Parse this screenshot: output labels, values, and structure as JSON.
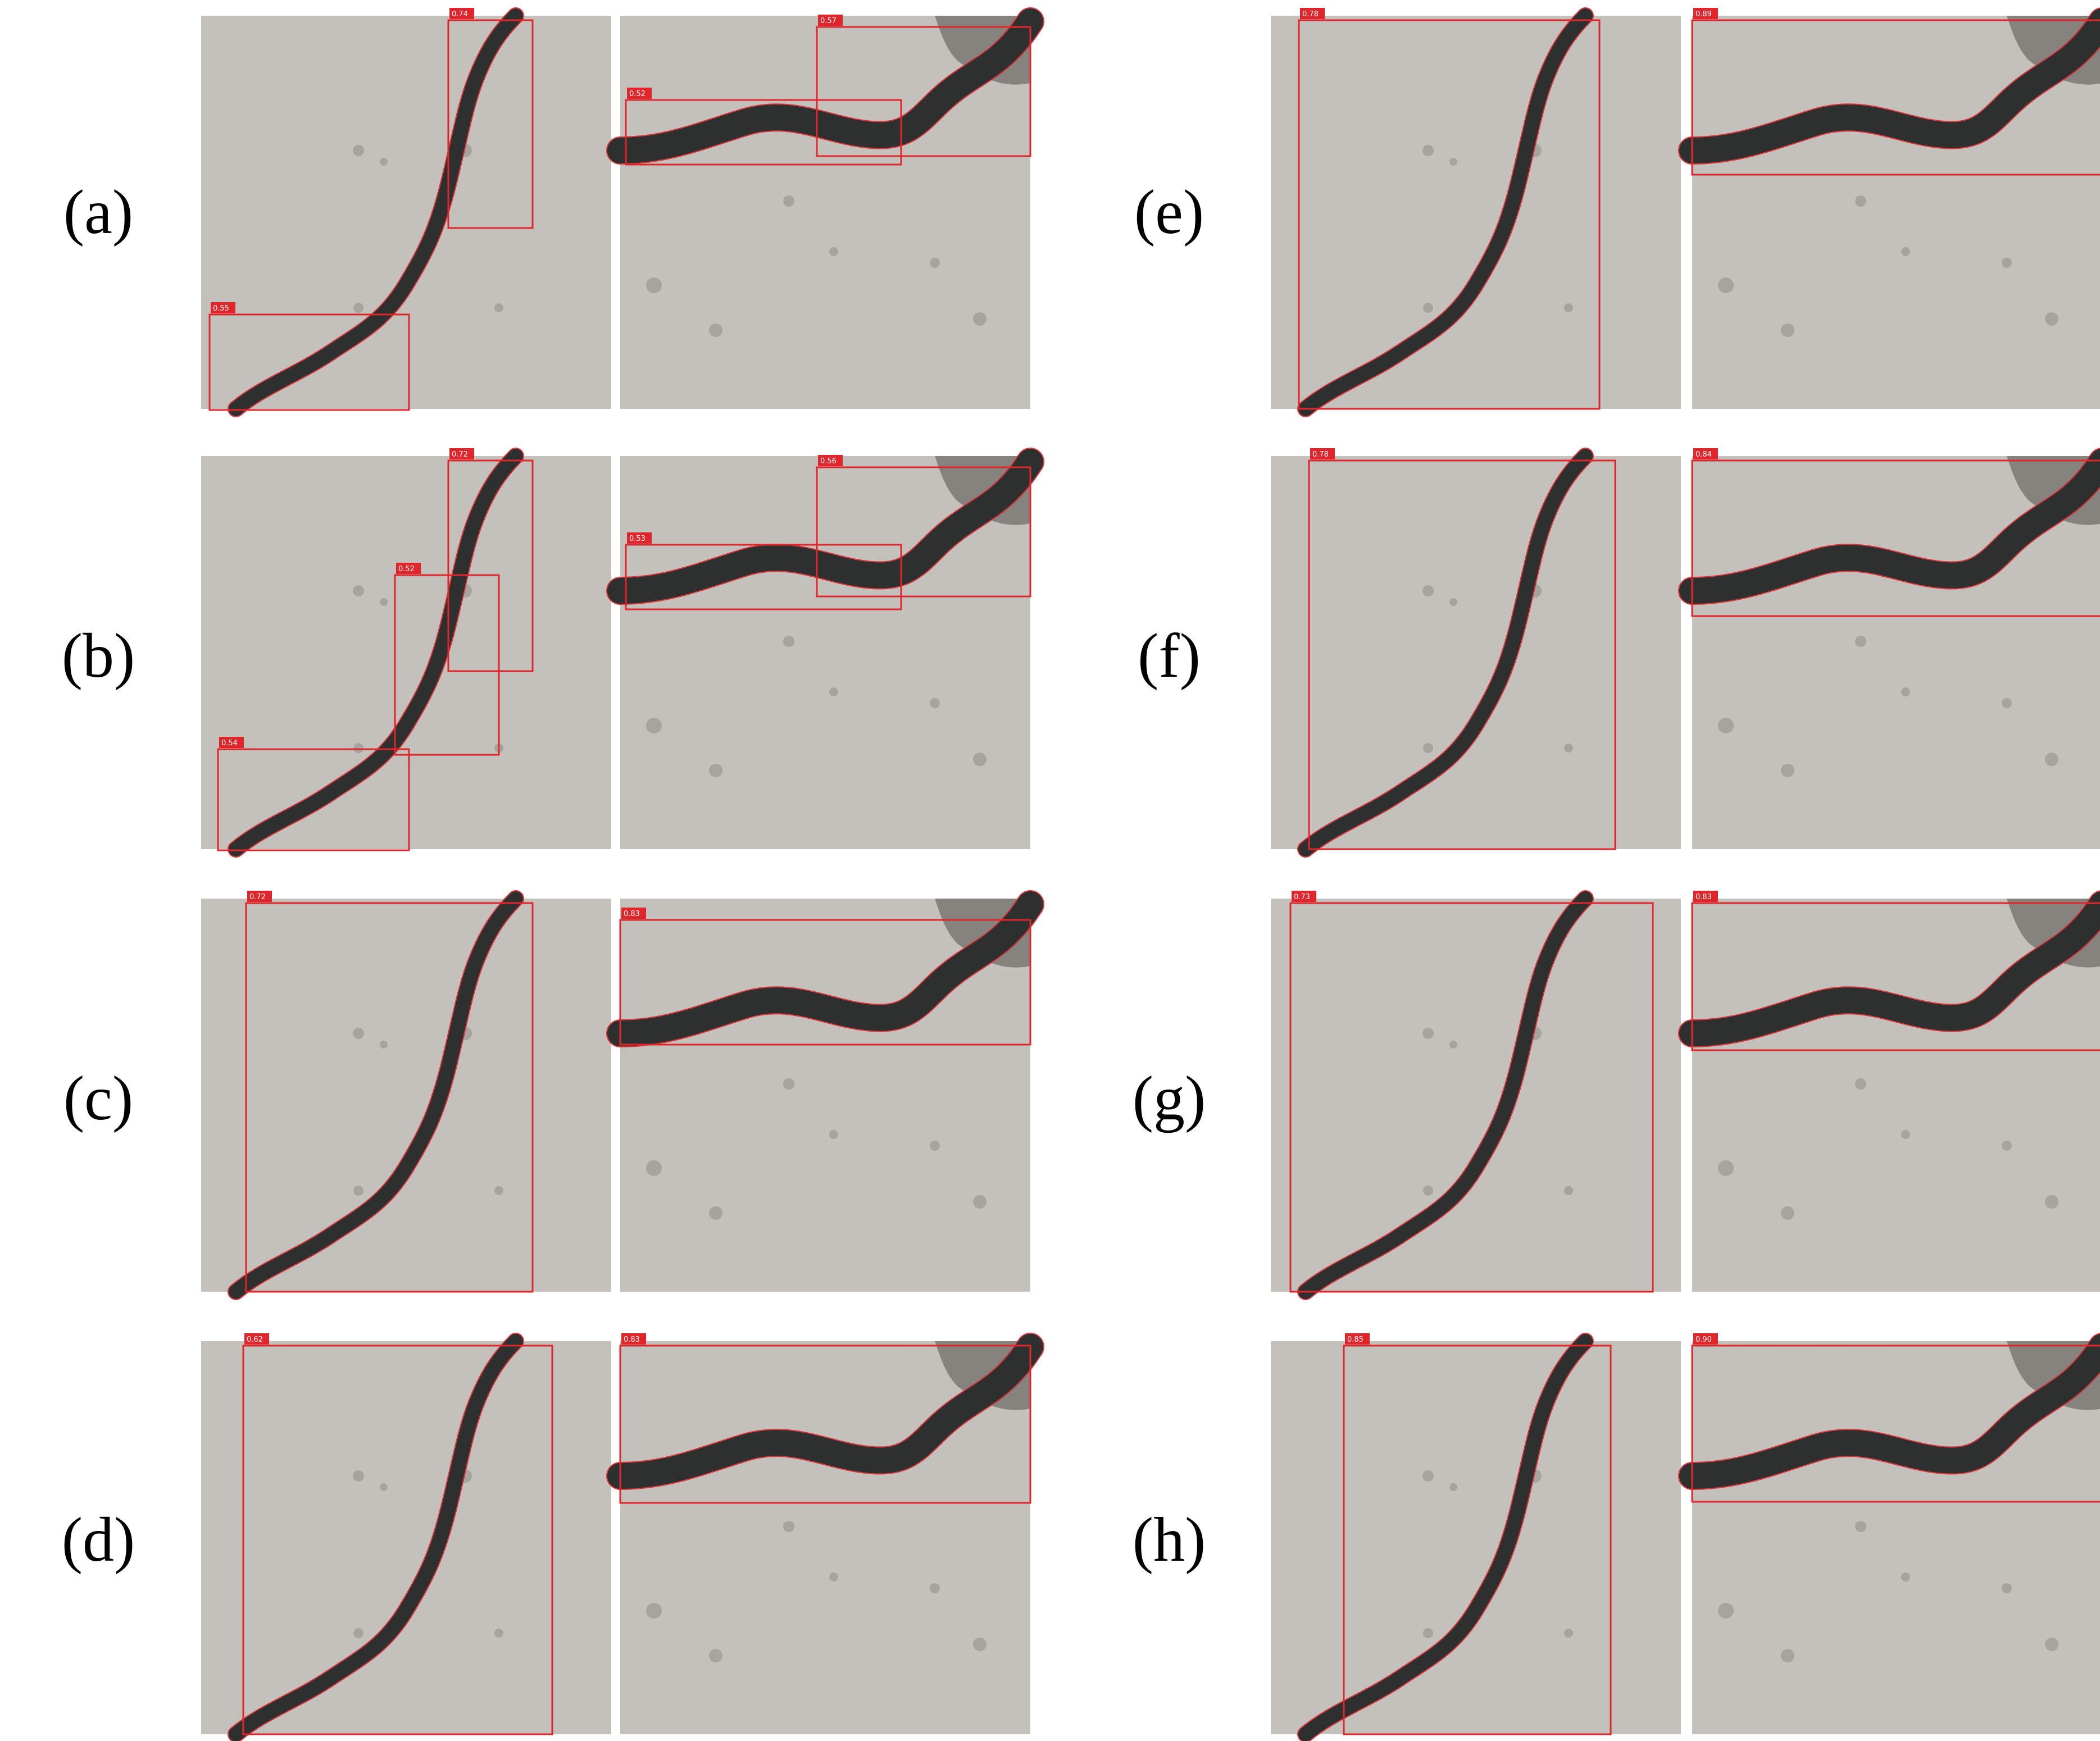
{
  "colors": {
    "detection": "#e0262b",
    "concrete": "#c4c0bb",
    "crack": "#2e3030"
  },
  "rows": [
    {
      "id": "a",
      "label": "(a)",
      "left_scores": [
        "0.74",
        "0.55"
      ],
      "right_scores": [
        "0.57",
        "0.52"
      ]
    },
    {
      "id": "b",
      "label": "(b)",
      "left_scores": [
        "0.72",
        "0.52",
        "0.54"
      ],
      "right_scores": [
        "0.56",
        "0.53"
      ]
    },
    {
      "id": "c",
      "label": "(c)",
      "left_scores": [
        "0.72"
      ],
      "right_scores": [
        "0.83"
      ]
    },
    {
      "id": "d",
      "label": "(d)",
      "left_scores": [
        "0.62"
      ],
      "right_scores": [
        "0.83"
      ]
    },
    {
      "id": "e",
      "label": "(e)",
      "left_scores": [
        "0.78"
      ],
      "right_scores": [
        "0.89"
      ]
    },
    {
      "id": "f",
      "label": "(f)",
      "left_scores": [
        "0.78"
      ],
      "right_scores": [
        "0.84"
      ]
    },
    {
      "id": "g",
      "label": "(g)",
      "left_scores": [
        "0.73"
      ],
      "right_scores": [
        "0.83"
      ]
    },
    {
      "id": "h",
      "label": "(h)",
      "left_scores": [
        "0.85"
      ],
      "right_scores": [
        "0.90"
      ]
    }
  ]
}
